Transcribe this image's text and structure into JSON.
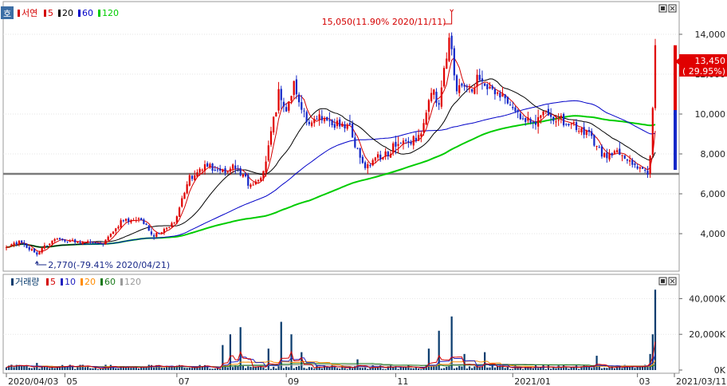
{
  "chart_data": [
    {
      "type": "candlestick",
      "name": "서연",
      "legend": [
        {
          "label": "서연",
          "color": "#d40000"
        },
        {
          "label": "5",
          "color": "#d40000"
        },
        {
          "label": "20",
          "color": "#000000"
        },
        {
          "label": "60",
          "color": "#0000c8"
        },
        {
          "label": "120",
          "color": "#00cc00"
        }
      ],
      "ylim": [
        2200,
        15400
      ],
      "y_ticks": [
        4000,
        6000,
        8000,
        10000,
        12000,
        14000
      ],
      "y_tick_labels": [
        "4,000",
        "6,000",
        "8,000",
        "10,000",
        "12,000",
        "14,000"
      ],
      "support_line": 7000,
      "last_price": {
        "value": 13450,
        "label": "13,450",
        "change_label": "( 29.95%)"
      },
      "annotations": [
        {
          "text": "15,050(11.90% 2020/11/11)",
          "value": 15050,
          "date": "2020/11/11"
        },
        {
          "text": "2,770(-79.41% 2020/04/21)",
          "value": 2770,
          "date": "2020/04/21"
        }
      ],
      "keypoints": [
        [
          0,
          3300
        ],
        [
          5,
          3600
        ],
        [
          12,
          3000
        ],
        [
          18,
          3700
        ],
        [
          28,
          3600
        ],
        [
          38,
          3500
        ],
        [
          45,
          4600
        ],
        [
          52,
          4800
        ],
        [
          58,
          3900
        ],
        [
          66,
          4600
        ],
        [
          72,
          6800
        ],
        [
          78,
          7500
        ],
        [
          84,
          7000
        ],
        [
          90,
          7400
        ],
        [
          96,
          6400
        ],
        [
          101,
          7000
        ],
        [
          104,
          9000
        ],
        [
          107,
          11000
        ],
        [
          110,
          10200
        ],
        [
          113,
          11500
        ],
        [
          116,
          10300
        ],
        [
          119,
          9300
        ],
        [
          123,
          10000
        ],
        [
          127,
          9700
        ],
        [
          131,
          9400
        ],
        [
          135,
          9300
        ],
        [
          138,
          8100
        ],
        [
          141,
          7400
        ],
        [
          145,
          7800
        ],
        [
          150,
          8000
        ],
        [
          154,
          8700
        ],
        [
          159,
          8500
        ],
        [
          163,
          9200
        ],
        [
          167,
          11200
        ],
        [
          170,
          10500
        ],
        [
          174,
          13800
        ],
        [
          177,
          11400
        ],
        [
          182,
          11200
        ],
        [
          186,
          11900
        ],
        [
          189,
          11300
        ],
        [
          194,
          11000
        ],
        [
          198,
          10500
        ],
        [
          203,
          9600
        ],
        [
          208,
          9600
        ],
        [
          212,
          10100
        ],
        [
          216,
          9800
        ],
        [
          220,
          9600
        ],
        [
          224,
          9300
        ],
        [
          228,
          9100
        ],
        [
          232,
          8400
        ],
        [
          235,
          7900
        ],
        [
          239,
          8100
        ],
        [
          243,
          7900
        ],
        [
          246,
          7600
        ],
        [
          250,
          7300
        ],
        [
          252,
          7100
        ],
        [
          253,
          7900
        ],
        [
          254,
          10300
        ],
        [
          255,
          13450
        ]
      ],
      "num_days": 256
    },
    {
      "type": "bar",
      "name": "거래량",
      "legend": [
        {
          "label": "거래량",
          "color": "#0a3c6e"
        },
        {
          "label": "5",
          "color": "#d40000"
        },
        {
          "label": "10",
          "color": "#2020c0"
        },
        {
          "label": "20",
          "color": "#ff8c00"
        },
        {
          "label": "60",
          "color": "#1a7a1a"
        },
        {
          "label": "120",
          "color": "#9a9a9a"
        }
      ],
      "ylim": [
        0,
        50000
      ],
      "y_ticks": [
        0,
        20000,
        40000
      ],
      "y_tick_labels": [
        "0K",
        "20,000K",
        "40,000K"
      ],
      "spikes": [
        {
          "day": 12,
          "value": 4000
        },
        {
          "day": 85,
          "value": 14000
        },
        {
          "day": 88,
          "value": 20000
        },
        {
          "day": 92,
          "value": 24000
        },
        {
          "day": 103,
          "value": 12000
        },
        {
          "day": 108,
          "value": 27000
        },
        {
          "day": 112,
          "value": 20000
        },
        {
          "day": 116,
          "value": 10000
        },
        {
          "day": 138,
          "value": 6000
        },
        {
          "day": 166,
          "value": 12000
        },
        {
          "day": 170,
          "value": 22000
        },
        {
          "day": 175,
          "value": 30000
        },
        {
          "day": 180,
          "value": 9000
        },
        {
          "day": 188,
          "value": 10000
        },
        {
          "day": 232,
          "value": 8000
        },
        {
          "day": 252,
          "value": 2500
        },
        {
          "day": 253,
          "value": 9000
        },
        {
          "day": 254,
          "value": 20000
        },
        {
          "day": 255,
          "value": 45000
        }
      ],
      "num_days": 256
    }
  ],
  "x_labels": [
    {
      "text": "2020/04/03",
      "day": 0
    },
    {
      "text": "05",
      "day": 23
    },
    {
      "text": "07",
      "day": 67
    },
    {
      "text": "09",
      "day": 110
    },
    {
      "text": "11",
      "day": 153
    },
    {
      "text": "2021/01",
      "day": 199
    },
    {
      "text": "03",
      "day": 248
    },
    {
      "text": "2021/03/11",
      "day": 262
    }
  ],
  "controls": {
    "corner_icon": "호"
  }
}
